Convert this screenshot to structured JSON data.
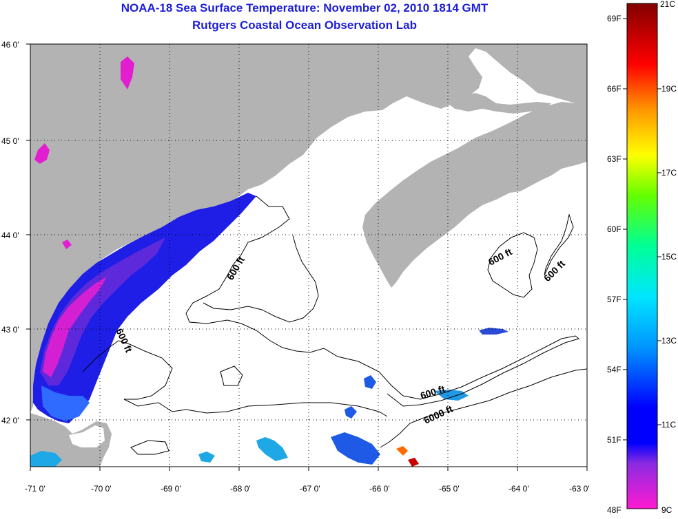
{
  "title": "NOAA-18 Sea Surface Temperature:  November 02, 2010 1814 GMT",
  "subtitle": "Rutgers Coastal Ocean Observation Lab",
  "map": {
    "lon_ticks": [
      "-71 0'",
      "-70 0'",
      "-69 0'",
      "-68 0'",
      "-67 0'",
      "-66 0'",
      "-65 0'",
      "-64 0'",
      "-63 0'"
    ],
    "lat_ticks": [
      "46 0'",
      "45 0'",
      "44 0'",
      "43 0'",
      "42 0'"
    ],
    "lon_range": [
      -71,
      -63
    ],
    "lat_range": [
      41.5,
      46
    ],
    "land_color": "#b3b3b3",
    "no_data_color": "#ffffff",
    "contour_labels": [
      "600 ft",
      "600 ft",
      "600 ft",
      "600 ft",
      "600 ft",
      "6000 ft"
    ]
  },
  "colorbar": {
    "fahrenheit": [
      "69F",
      "66F",
      "63F",
      "60F",
      "57F",
      "54F",
      "51F",
      "48F"
    ],
    "celsius": [
      "21C",
      "19C",
      "17C",
      "15C",
      "13C",
      "11C",
      "9C"
    ],
    "colors": [
      "#ff1ad0",
      "#8a2be2",
      "#0000ff",
      "#0096ff",
      "#00e6ff",
      "#00ff96",
      "#64ff00",
      "#ffff00",
      "#ff9600",
      "#ff0000",
      "#820000"
    ]
  }
}
